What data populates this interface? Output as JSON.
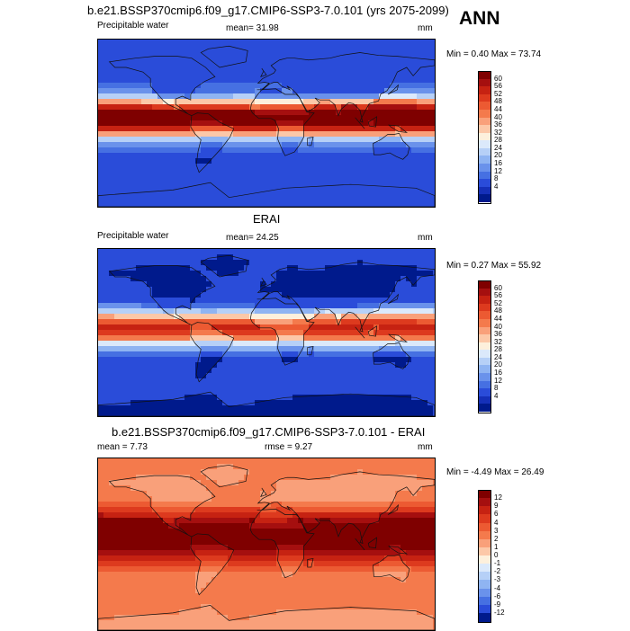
{
  "main_title": "b.e21.BSSP370cmip6.f09_g17.CMIP6-SSP3-7.0.101 (yrs 2075-2099)",
  "season": "ANN",
  "panels": [
    {
      "title": "",
      "variable": "Precipitable water",
      "stat1": "mean=  31.98",
      "stat2": "",
      "units": "mm",
      "minmax": "Min =   0.40 Max =  73.74",
      "field": "model"
    },
    {
      "title": "ERAI",
      "variable": "Precipitable water",
      "stat1": "mean=  24.25",
      "stat2": "",
      "units": "mm",
      "minmax": "Min =   0.27 Max =  55.92",
      "field": "obs"
    },
    {
      "title": "b.e21.BSSP370cmip6.f09_g17.CMIP6-SSP3-7.0.101 - ERAI",
      "variable": "",
      "stat1": "mean =   7.73",
      "stat2": "rmse =   9.27",
      "units": "mm",
      "minmax": "Min =  -4.49 Max =  26.49",
      "field": "diff"
    }
  ],
  "colorbars": {
    "absolute": {
      "labels": [
        "60",
        "56",
        "52",
        "48",
        "44",
        "40",
        "36",
        "32",
        "28",
        "24",
        "20",
        "16",
        "12",
        "8",
        "4"
      ],
      "colors": [
        "#7f0000",
        "#a50f0f",
        "#c62212",
        "#dd3a1e",
        "#ec5a32",
        "#f47a4c",
        "#f9a07a",
        "#fcc8a8",
        "#fdf0dc",
        "#dbe9fb",
        "#b6d0f7",
        "#8fb4f2",
        "#6a92eb",
        "#4670e2",
        "#2a4cd9",
        "#1530b8",
        "#001a8c"
      ]
    },
    "difference": {
      "labels": [
        "12",
        "9",
        "6",
        "4",
        "3",
        "2",
        "1",
        "0",
        "-1",
        "-2",
        "-3",
        "-4",
        "-6",
        "-9",
        "-12"
      ],
      "colors": [
        "#7f0000",
        "#a50f0f",
        "#c62212",
        "#dd3a1e",
        "#ec5a32",
        "#f47a4c",
        "#f9a07a",
        "#fcc8a8",
        "#fdf0dc",
        "#dbe9fb",
        "#b6d0f7",
        "#8fb4f2",
        "#6a92eb",
        "#4670e2",
        "#2a4cd9",
        "#001a8c"
      ]
    }
  }
}
